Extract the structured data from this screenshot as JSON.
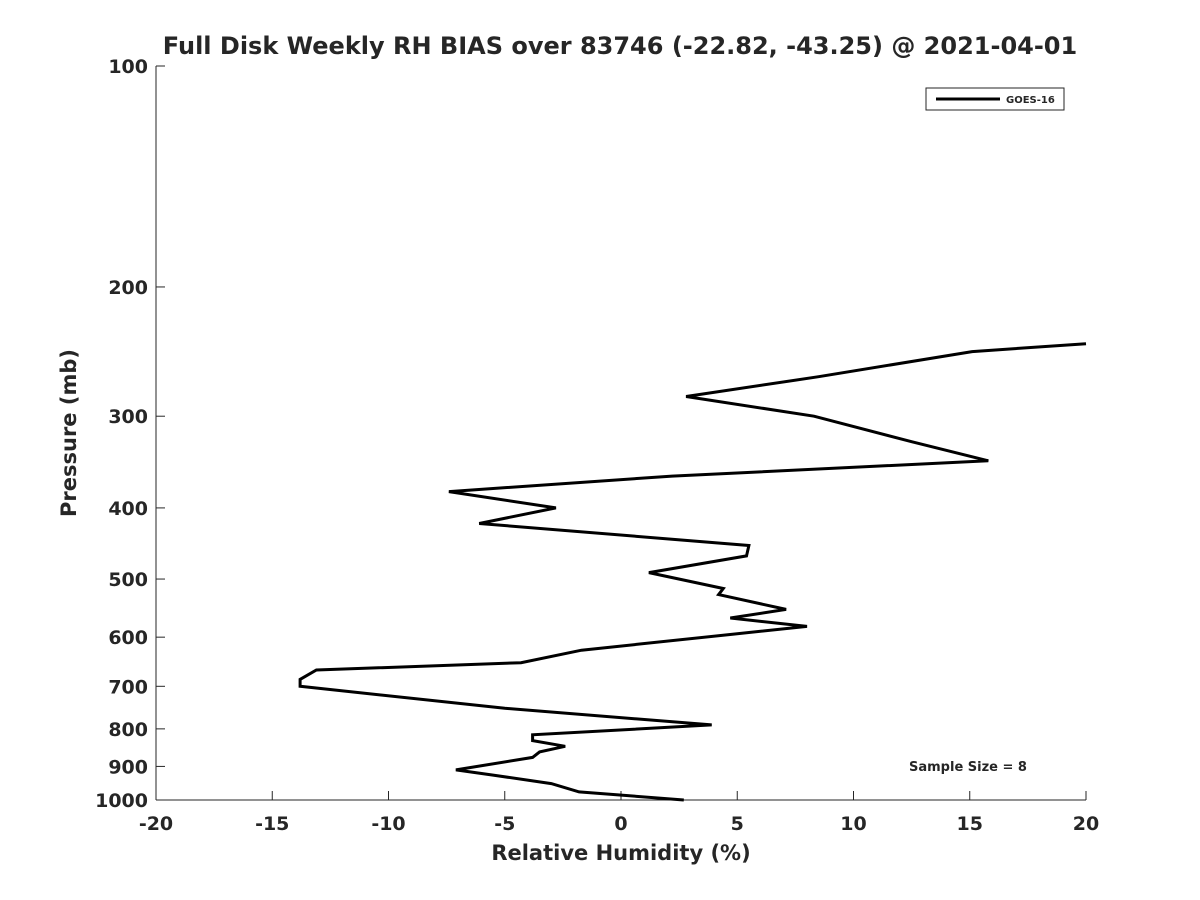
{
  "chart_data": {
    "type": "line",
    "title": "Full Disk Weekly RH BIAS over 83746 (-22.82, -43.25) @ 2021-04-01",
    "xlabel": "Relative Humidity (%)",
    "ylabel": "Pressure (mb)",
    "xlim": [
      -20,
      20
    ],
    "ylim": [
      1000,
      100
    ],
    "y_scale": "log",
    "y_reversed": true,
    "x_ticks": [
      "-20",
      "-15",
      "-10",
      "-5",
      "0",
      "5",
      "10",
      "15",
      "20"
    ],
    "y_ticks": [
      "100",
      "200",
      "300",
      "400",
      "500",
      "600",
      "700",
      "800",
      "900",
      "1000"
    ],
    "grid": false,
    "legend_position": "top-right",
    "series": [
      {
        "name": "GOES-16",
        "color": "#000000",
        "points": [
          {
            "x": 2.7,
            "y": 1000
          },
          {
            "x": -1.8,
            "y": 975
          },
          {
            "x": -3.0,
            "y": 950
          },
          {
            "x": -5.5,
            "y": 925
          },
          {
            "x": -7.1,
            "y": 910
          },
          {
            "x": -3.8,
            "y": 875
          },
          {
            "x": -3.5,
            "y": 860
          },
          {
            "x": -2.4,
            "y": 845
          },
          {
            "x": -3.8,
            "y": 830
          },
          {
            "x": -3.8,
            "y": 815
          },
          {
            "x": 3.9,
            "y": 790
          },
          {
            "x": -5.0,
            "y": 750
          },
          {
            "x": -13.8,
            "y": 700
          },
          {
            "x": -13.8,
            "y": 685
          },
          {
            "x": -13.1,
            "y": 665
          },
          {
            "x": -4.3,
            "y": 650
          },
          {
            "x": -1.7,
            "y": 625
          },
          {
            "x": 8.0,
            "y": 580
          },
          {
            "x": 4.7,
            "y": 565
          },
          {
            "x": 7.1,
            "y": 550
          },
          {
            "x": 4.2,
            "y": 525
          },
          {
            "x": 4.4,
            "y": 515
          },
          {
            "x": 1.2,
            "y": 490
          },
          {
            "x": 5.4,
            "y": 465
          },
          {
            "x": 5.5,
            "y": 450
          },
          {
            "x": -6.1,
            "y": 420
          },
          {
            "x": -2.8,
            "y": 400
          },
          {
            "x": -7.4,
            "y": 380
          },
          {
            "x": 2.2,
            "y": 362
          },
          {
            "x": 15.8,
            "y": 345
          },
          {
            "x": 12.5,
            "y": 325
          },
          {
            "x": 8.3,
            "y": 300
          },
          {
            "x": 2.8,
            "y": 282
          },
          {
            "x": 8.5,
            "y": 265
          },
          {
            "x": 15.1,
            "y": 245
          },
          {
            "x": 20.0,
            "y": 239
          }
        ]
      }
    ],
    "annotation": "Sample Size = 8"
  }
}
